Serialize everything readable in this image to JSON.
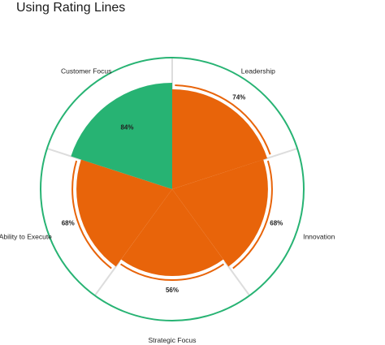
{
  "chart_data": {
    "type": "polar-area",
    "title": "Using Rating Lines",
    "max_value": 100,
    "categories": [
      "Leadership",
      "Innovation",
      "Strategic Focus",
      "Ability to Execute",
      "Customer Focus"
    ],
    "value_labels": [
      "74%",
      "68%",
      "56%",
      "68%",
      "84%"
    ],
    "values": [
      74,
      68,
      56,
      68,
      84
    ],
    "highlighted_category": "Customer Focus",
    "colors": {
      "fill": "#e8640a",
      "highlight_fill": "#27b373",
      "rating_line": "#e8640a",
      "outer_ring": "#27b373",
      "separator": "#dddddd"
    }
  }
}
